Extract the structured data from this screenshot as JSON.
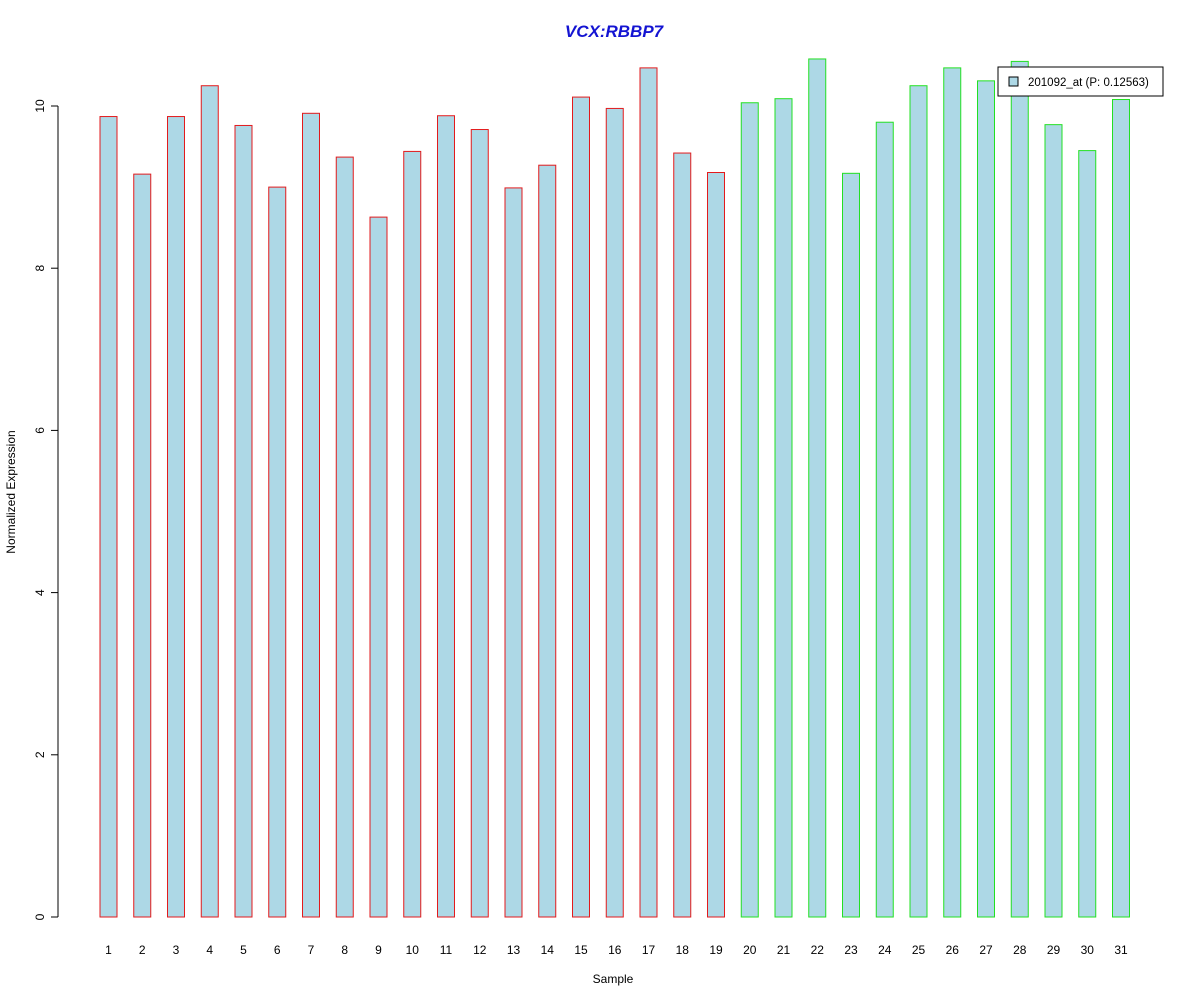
{
  "chart_data": {
    "type": "bar",
    "title": "VCX:RBBP7",
    "xlabel": "Sample",
    "ylabel": "Normalized Expression",
    "ylim": [
      0,
      10.5
    ],
    "yticks": [
      0,
      2,
      4,
      6,
      8,
      10
    ],
    "categories": [
      "1",
      "2",
      "3",
      "4",
      "5",
      "6",
      "7",
      "8",
      "9",
      "10",
      "11",
      "12",
      "13",
      "14",
      "15",
      "16",
      "17",
      "18",
      "19",
      "20",
      "21",
      "22",
      "23",
      "24",
      "25",
      "26",
      "27",
      "28",
      "29",
      "30",
      "31"
    ],
    "series": [
      {
        "name": "201092_at (P: 0.12563)",
        "values": [
          9.87,
          9.16,
          9.87,
          10.25,
          9.76,
          9.0,
          9.91,
          9.37,
          8.63,
          9.44,
          9.88,
          9.71,
          8.99,
          9.27,
          10.11,
          9.97,
          10.47,
          9.42,
          9.18,
          10.04,
          10.09,
          10.58,
          9.17,
          9.8,
          10.25,
          10.47,
          10.31,
          10.55,
          9.77,
          9.45,
          10.08
        ]
      }
    ],
    "group_border_colors": [
      "#e31a1c",
      "#e31a1c",
      "#e31a1c",
      "#e31a1c",
      "#e31a1c",
      "#e31a1c",
      "#e31a1c",
      "#e31a1c",
      "#e31a1c",
      "#e31a1c",
      "#e31a1c",
      "#e31a1c",
      "#e31a1c",
      "#e31a1c",
      "#e31a1c",
      "#e31a1c",
      "#e31a1c",
      "#e31a1c",
      "#e31a1c",
      "#22e022",
      "#22e022",
      "#22e022",
      "#22e022",
      "#22e022",
      "#22e022",
      "#22e022",
      "#22e022",
      "#22e022",
      "#22e022",
      "#22e022",
      "#22e022"
    ],
    "bar_fill": "#add8e6",
    "title_color": "#1414d2",
    "legend_position": "top-right",
    "grid": false
  }
}
